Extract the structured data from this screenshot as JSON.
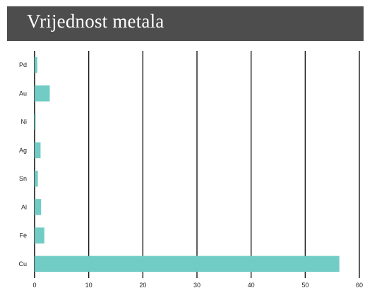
{
  "header": {
    "title": "Vrijednost metala"
  },
  "colors": {
    "bar": "#70ccc4",
    "title_background": "#4d4d4d",
    "grid": "#1a1a1a"
  },
  "chart_data": {
    "type": "bar",
    "orientation": "horizontal",
    "title": "Vrijednost metala",
    "categories": [
      "Pd",
      "Au",
      "Ni",
      "Ag",
      "Sn",
      "Al",
      "Fe",
      "Cu"
    ],
    "values": [
      0.5,
      2.8,
      0.2,
      1.1,
      0.6,
      1.2,
      1.8,
      56.3
    ],
    "xlim": [
      0,
      60
    ],
    "xticks": [
      0,
      10,
      20,
      30,
      40,
      50,
      60
    ],
    "xlabel": "",
    "ylabel": "",
    "grid": "vertical",
    "legend": "none"
  }
}
